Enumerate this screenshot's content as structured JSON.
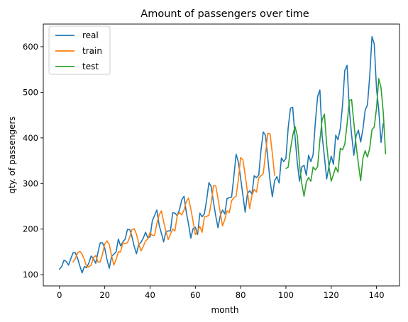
{
  "chart_data": {
    "type": "line",
    "title": "Amount of passengers over time",
    "xlabel": "month",
    "ylabel": "qty. of passengers",
    "xlim": [
      -7.15,
      150.15
    ],
    "ylim": [
      75.4,
      649.6
    ],
    "xticks": [
      0,
      20,
      40,
      60,
      80,
      100,
      120,
      140
    ],
    "yticks": [
      100,
      200,
      300,
      400,
      500,
      600
    ],
    "grid": false,
    "legend_position": "top-left",
    "series": [
      {
        "name": "real",
        "color": "#1f77b4",
        "x_start": 0,
        "values": [
          112,
          118,
          132,
          129,
          121,
          135,
          148,
          148,
          136,
          119,
          104,
          118,
          115,
          126,
          141,
          135,
          125,
          149,
          170,
          170,
          158,
          133,
          114,
          140,
          145,
          150,
          178,
          163,
          172,
          178,
          199,
          199,
          184,
          162,
          146,
          166,
          171,
          180,
          193,
          181,
          183,
          218,
          230,
          242,
          209,
          191,
          172,
          194,
          196,
          196,
          236,
          235,
          229,
          243,
          264,
          272,
          237,
          211,
          180,
          201,
          204,
          188,
          235,
          227,
          234,
          264,
          302,
          293,
          259,
          229,
          203,
          229,
          242,
          233,
          267,
          269,
          270,
          315,
          364,
          347,
          312,
          274,
          237,
          278,
          284,
          277,
          317,
          313,
          318,
          374,
          413,
          405,
          355,
          306,
          271,
          306,
          315,
          301,
          356,
          348,
          355,
          422,
          465,
          467,
          404,
          347,
          305,
          336,
          340,
          318,
          362,
          348,
          363,
          435,
          491,
          505,
          404,
          359,
          310,
          337,
          360,
          342,
          406,
          396,
          420,
          472,
          548,
          559,
          463,
          407,
          362,
          405,
          417,
          391,
          419,
          461,
          472,
          535,
          622,
          606,
          508,
          461,
          390,
          432
        ]
      },
      {
        "name": "train",
        "color": "#ff7f0e",
        "x_start": 6,
        "values": [
          128,
          135,
          148,
          151,
          145,
          133,
          118,
          117,
          121,
          138,
          142,
          128,
          128,
          145,
          168,
          174,
          166,
          142,
          121,
          133,
          150,
          150,
          170,
          168,
          170,
          182,
          199,
          201,
          189,
          168,
          152,
          162,
          174,
          178,
          193,
          186,
          186,
          212,
          231,
          240,
          216,
          196,
          177,
          189,
          200,
          196,
          230,
          236,
          231,
          242,
          260,
          268,
          244,
          217,
          188,
          196,
          206,
          193,
          227,
          228,
          230,
          257,
          295,
          295,
          267,
          236,
          207,
          221,
          240,
          236,
          262,
          269,
          272,
          309,
          357,
          352,
          319,
          282,
          245,
          274,
          287,
          281,
          312,
          317,
          322,
          366,
          410,
          409,
          366,
          318
        ]
      },
      {
        "name": "test",
        "color": "#2ca02c",
        "x_start": 100,
        "values": [
          333,
          336,
          375,
          405,
          425,
          405,
          342,
          300,
          272,
          303,
          313,
          305,
          336,
          330,
          337,
          395,
          440,
          452,
          385,
          337,
          305,
          320,
          336,
          325,
          377,
          374,
          386,
          430,
          482,
          484,
          433,
          384,
          343,
          306,
          355,
          372,
          358,
          377,
          418,
          424,
          465,
          530,
          510,
          455,
          365
        ]
      }
    ]
  }
}
